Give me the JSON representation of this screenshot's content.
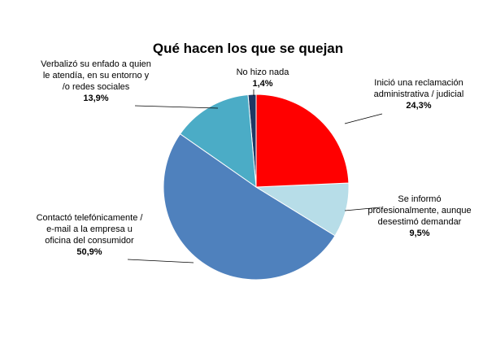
{
  "chart_data": {
    "type": "pie",
    "title": "Qué hacen los que se quejan",
    "categories": [
      "Inició una reclamación administrativa / judicial",
      "Se informó profesionalmente, aunque desestimó demandar",
      "Contactó telefónicamente / e-mail a la empresa u oficina del consumidor",
      "Verbalizó su enfado a quien le atendía, en su entorno y /o redes sociales",
      "No hizo nada"
    ],
    "values": [
      24.3,
      9.5,
      50.9,
      13.9,
      1.4
    ],
    "value_labels": [
      "24,3%",
      "9,5%",
      "50,9%",
      "13,9%",
      "1,4%"
    ],
    "colors": [
      "#ff0000",
      "#b7dde8",
      "#4f81bd",
      "#4bacc6",
      "#1f3864"
    ]
  }
}
